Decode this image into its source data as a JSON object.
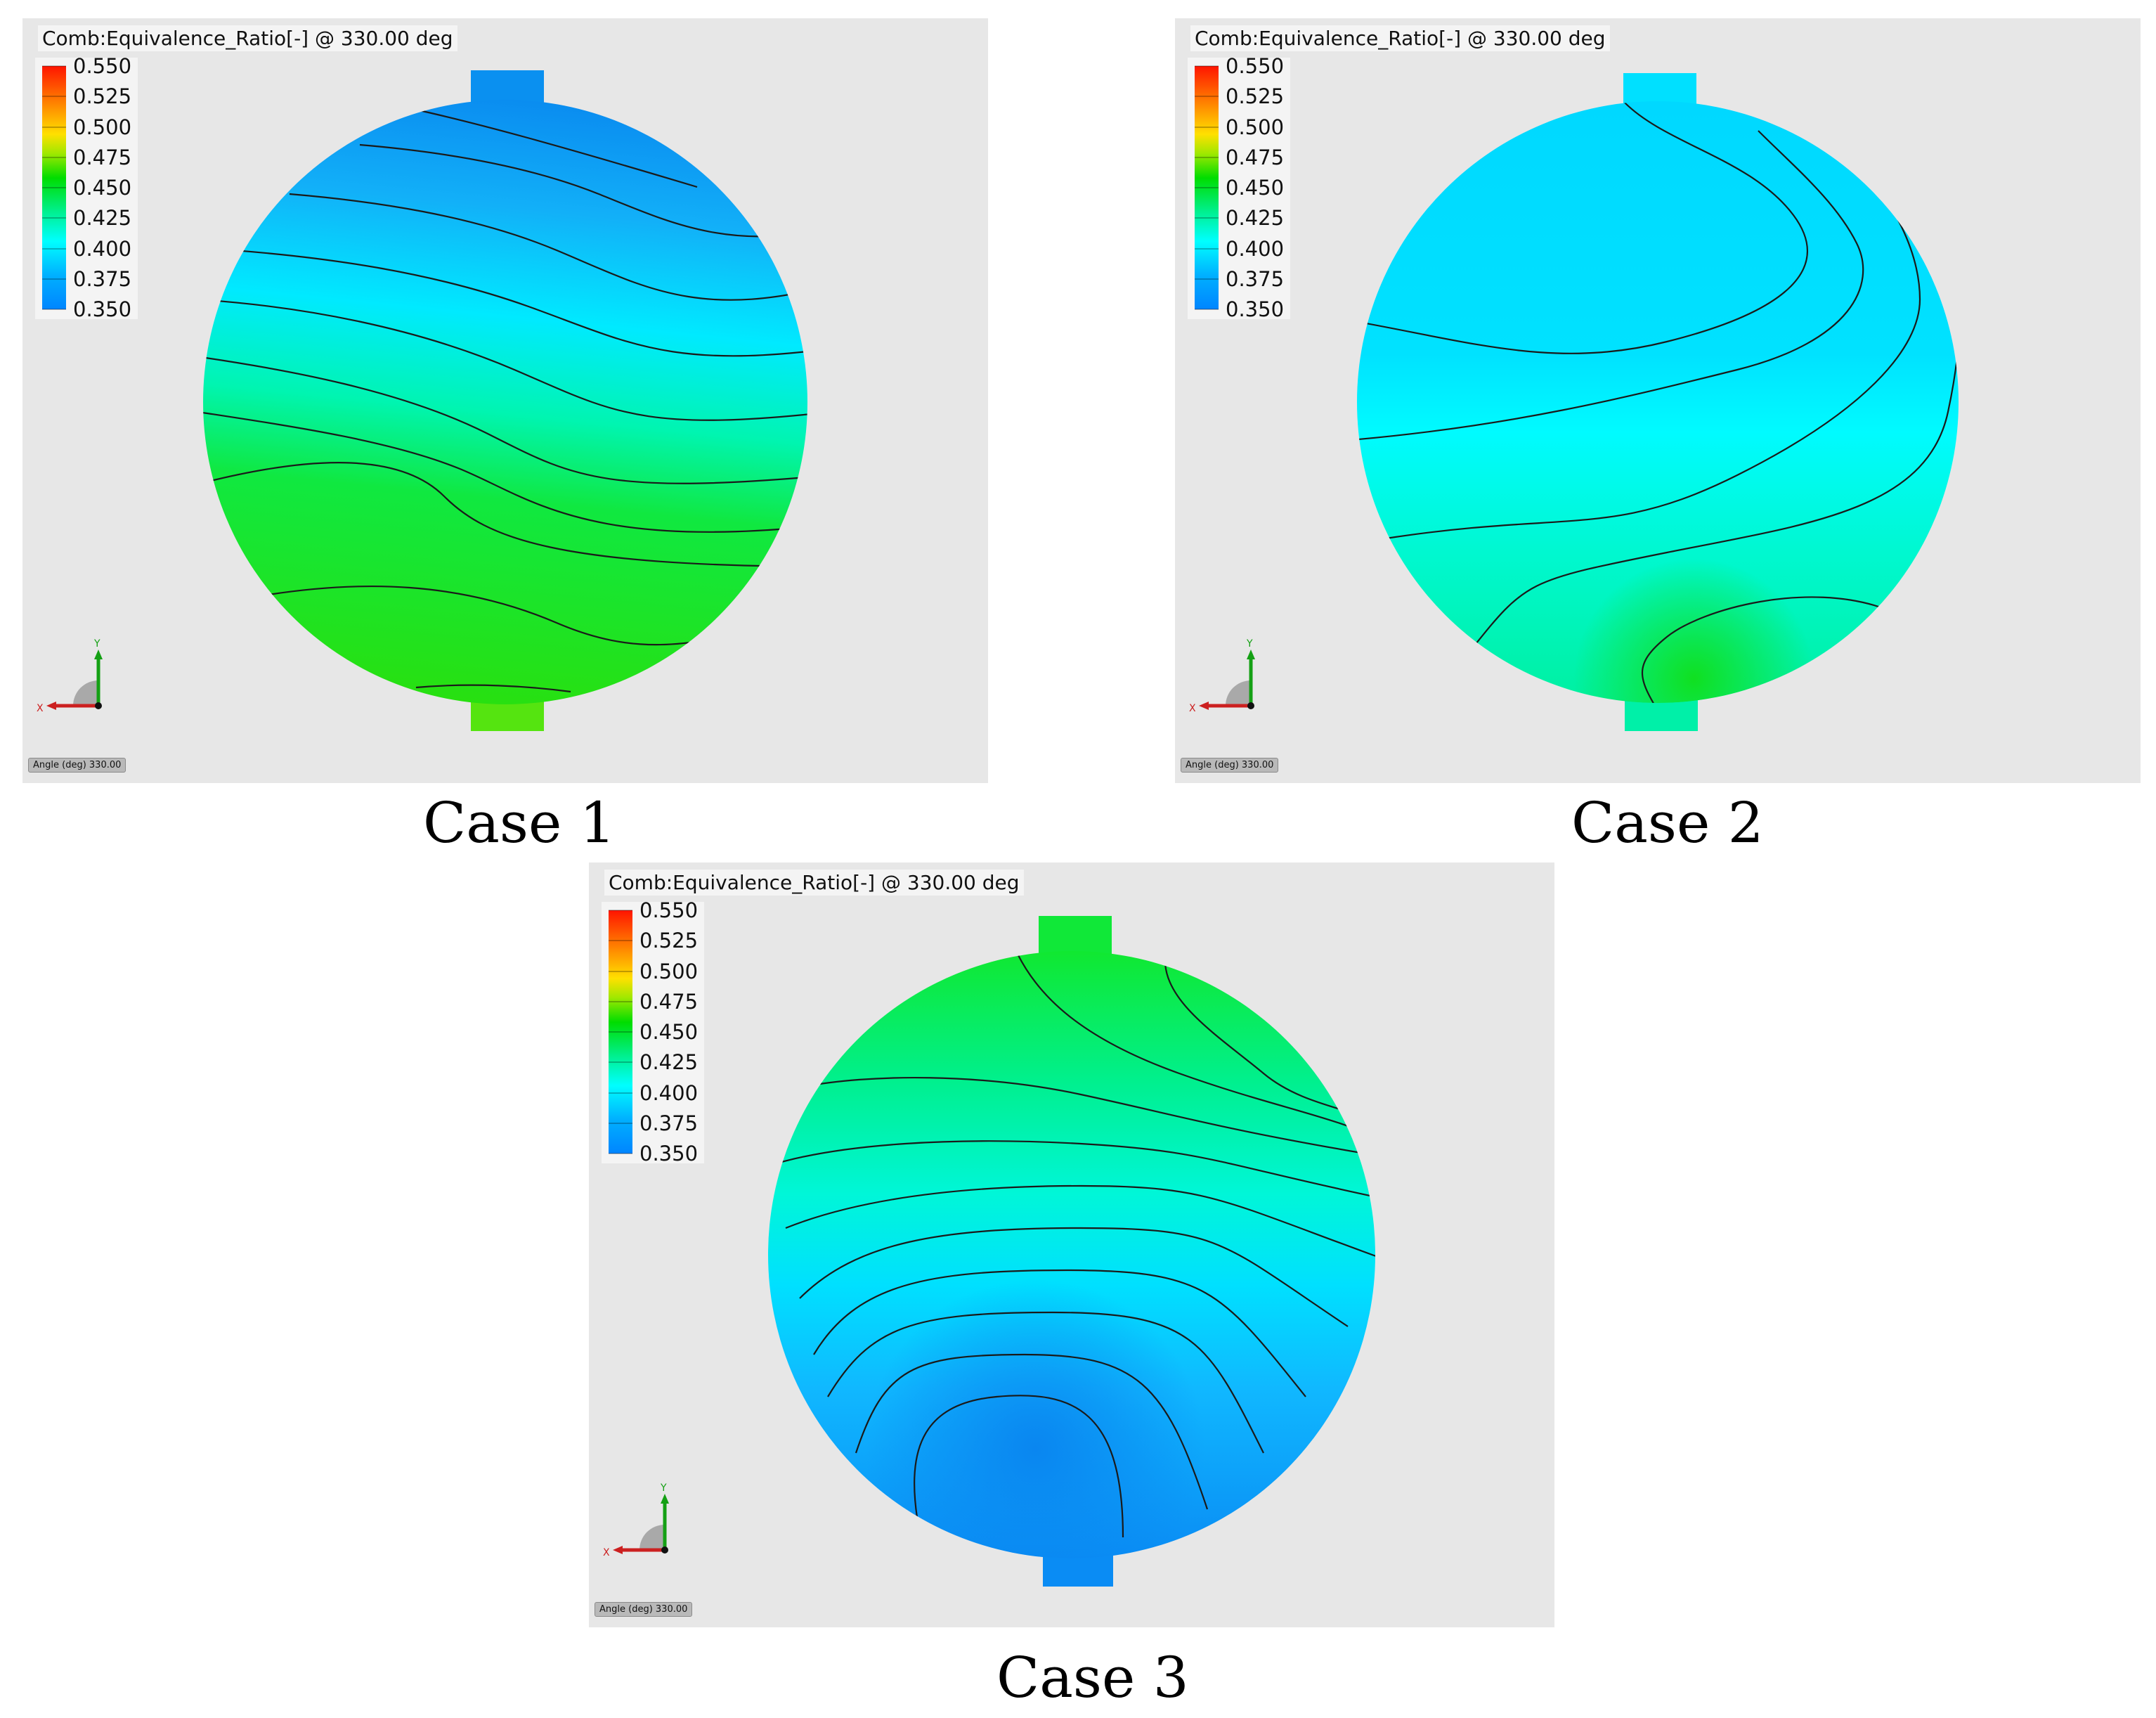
{
  "legend": {
    "title": "Comb:Equivalence_Ratio[-] @ 330.00 deg",
    "values": [
      "0.550",
      "0.525",
      "0.500",
      "0.475",
      "0.450",
      "0.425",
      "0.400",
      "0.375",
      "0.350"
    ],
    "colors": [
      "#ff1500",
      "#ff8a00",
      "#ffe000",
      "#00dd00",
      "#00f090",
      "#00ffff",
      "#00b0ff",
      "#0085ff"
    ]
  },
  "angle_label": "Angle (deg) 330.00",
  "axis": {
    "x_label": "X",
    "y_label": "Y"
  },
  "cases": [
    {
      "caption": "Case 1",
      "dominant": "lean top (0.375-0.400), rich bottom (0.450-0.475)"
    },
    {
      "caption": "Case 2",
      "dominant": "near-uniform 0.400-0.425, richer pocket at bottom"
    },
    {
      "caption": "Case 3",
      "dominant": "rich top (0.450), lean bottom core (0.350-0.375)"
    }
  ]
}
